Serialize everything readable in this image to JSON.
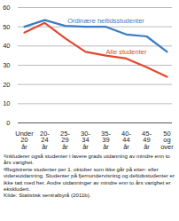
{
  "chart_data": {
    "type": "line",
    "categories": [
      "Under\n20\når",
      "20-\n24\når",
      "25-\n29\når",
      "30-\n34\når",
      "35-\n39\når",
      "40-\n44\når",
      "45-\n49\når",
      "50\nog\nover"
    ],
    "series": [
      {
        "name": "Ordinære heltidsstudenter",
        "color": "#3a7cc3",
        "values": [
          50,
          53.5,
          50.5,
          50,
          50,
          46,
          45,
          37
        ]
      },
      {
        "name": "Alle studenter",
        "color": "#e2492f",
        "values": [
          47,
          52,
          44,
          37,
          35,
          33.5,
          29,
          24
        ]
      }
    ],
    "ylim": [
      0,
      60
    ],
    "yticks": [
      0,
      10,
      20,
      30,
      40,
      50,
      60
    ],
    "grid": true,
    "footnotes": [
      "¹Inkluderer også studenter i lavere grads utdanning av mindre enn to års varighet.",
      "²Registrerte studenter per 1. oktober som ikke går på etter- eller videreutdanning. Studenter på fjernundervisning og deltidsstudenter er ikke tatt med her. Andre utdanninger av mindre enn to års varighet er ekskludert.",
      "Kilde: Statistisk sentralbyrå (2011b)."
    ]
  }
}
